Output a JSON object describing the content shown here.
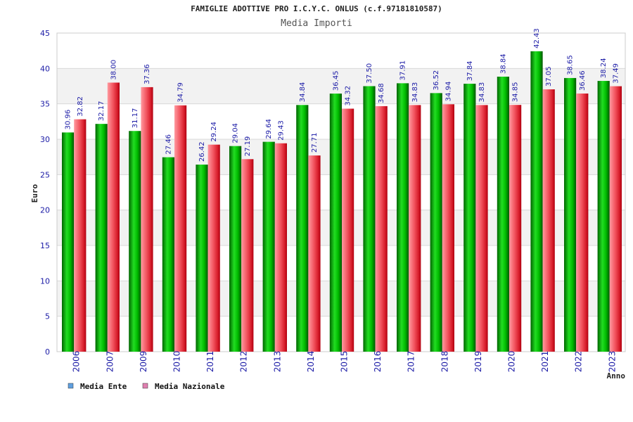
{
  "chart_data": {
    "type": "bar",
    "title": "FAMIGLIE ADOTTIVE PRO I.C.Y.C. ONLUS (c.f.97181810587)",
    "subtitle": "Media Importi",
    "xlabel": "Anno",
    "ylabel": "Euro",
    "ylim": [
      0,
      45
    ],
    "yticks": [
      0,
      5,
      10,
      15,
      20,
      25,
      30,
      35,
      40,
      45
    ],
    "grid": true,
    "legend_position": "bottom-left",
    "categories": [
      "2006",
      "2007",
      "2009",
      "2010",
      "2011",
      "2012",
      "2013",
      "2014",
      "2015",
      "2016",
      "2017",
      "2018",
      "2019",
      "2020",
      "2021",
      "2022",
      "2023"
    ],
    "series": [
      {
        "name": "Media Ente",
        "color": "#00aa00",
        "legend_color": "#5fa0e0",
        "values": [
          30.96,
          32.17,
          31.17,
          27.46,
          26.42,
          29.04,
          29.64,
          34.84,
          36.45,
          37.5,
          37.91,
          36.52,
          37.84,
          38.84,
          42.43,
          38.65,
          38.24
        ],
        "labels": [
          "30.96",
          "32.17",
          "31.17",
          "27.46",
          "26.42",
          "29.04",
          "29.64",
          "34.84",
          "36.45",
          "37.50",
          "37.91",
          "36.52",
          "37.84",
          "38.84",
          "42.43",
          "38.65",
          "38.24"
        ]
      },
      {
        "name": "Media Nazionale",
        "color": "#e23a45",
        "legend_color": "#e080b0",
        "values": [
          32.82,
          38.0,
          37.36,
          34.79,
          29.24,
          27.19,
          29.43,
          27.71,
          34.32,
          34.68,
          34.83,
          34.94,
          34.83,
          34.85,
          37.05,
          36.46,
          37.49
        ],
        "labels": [
          "32.82",
          "38.00",
          "37.36",
          "34.79",
          "29.24",
          "27.19",
          "29.43",
          "27.71",
          "34.32",
          "34.68",
          "34.83",
          "34.94",
          "34.83",
          "34.85",
          "37.05",
          "36.46",
          "37.49"
        ]
      }
    ]
  }
}
